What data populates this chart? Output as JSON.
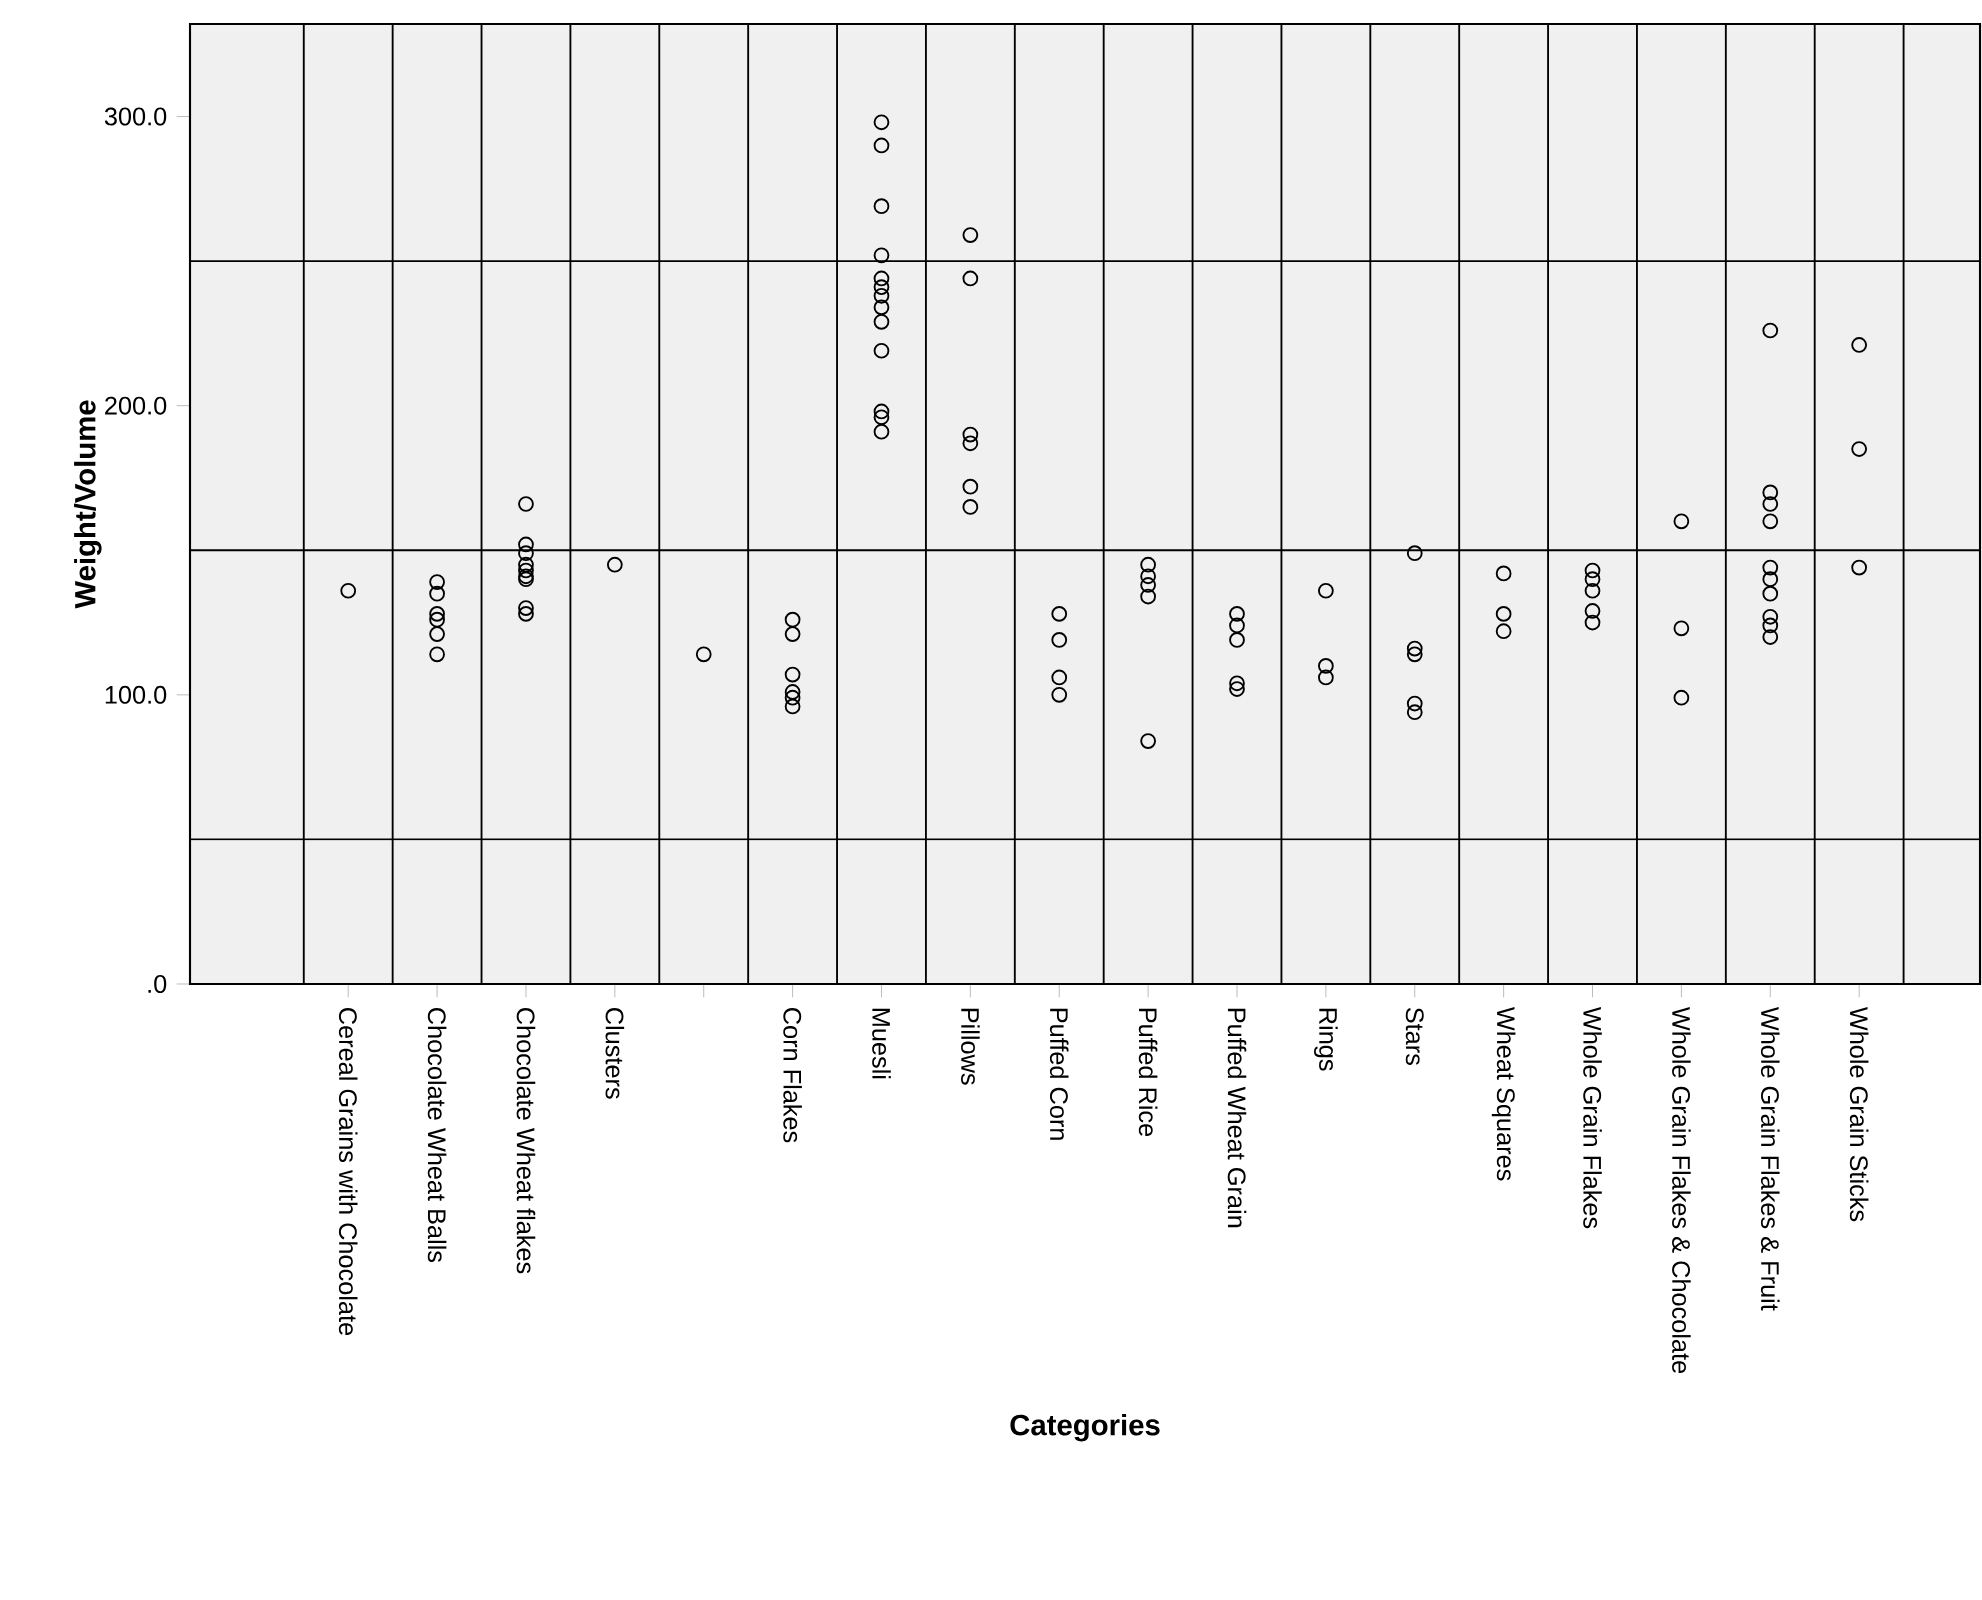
{
  "chart_data": {
    "type": "scatter",
    "xlabel": "Categories",
    "ylabel": "Weight/Volume",
    "categories": [
      "Cereal Grains with Chocolate",
      "Chocolate Wheat Balls",
      "Chocolate Wheat flakes",
      "Clusters",
      null,
      "Corn Flakes",
      "Muesli",
      "Pillows",
      "Puffed Corn",
      "Puffed Rice",
      "Puffed Wheat Grain",
      "Rings",
      "Stars",
      "Wheat Squares",
      "Whole Grain Flakes",
      "Whole Grain Flakes & Chocolate",
      "Whole Grain Flakes & Fruit",
      "Whole Grain Sticks"
    ],
    "series": [
      {
        "color": "#000000",
        "values": [
          136,
          139,
          166,
          145,
          114,
          126,
          298,
          259,
          128,
          145,
          128,
          136,
          149,
          142,
          143,
          160,
          226,
          221
        ]
      },
      {
        "color": "#000000",
        "values": [
          null,
          135,
          152,
          null,
          null,
          121,
          290,
          244,
          119,
          141,
          124,
          110,
          116,
          128,
          140,
          123,
          170,
          185
        ]
      },
      {
        "color": "#000000",
        "values": [
          null,
          128,
          149,
          null,
          null,
          107,
          269,
          190,
          106,
          138,
          119,
          106,
          114,
          122,
          136,
          99,
          166,
          144
        ]
      },
      {
        "color": "#000000",
        "values": [
          null,
          126,
          145,
          null,
          null,
          101,
          252,
          187,
          100,
          134,
          104,
          null,
          97,
          null,
          129,
          null,
          160,
          null
        ]
      },
      {
        "color": "#000000",
        "values": [
          null,
          121,
          143,
          null,
          null,
          99,
          244,
          172,
          null,
          84,
          102,
          null,
          94,
          null,
          125,
          null,
          144,
          null
        ]
      },
      {
        "color": "#000000",
        "values": [
          null,
          114,
          141,
          null,
          null,
          96,
          241,
          165,
          null,
          null,
          null,
          null,
          null,
          null,
          null,
          null,
          140,
          null
        ]
      },
      {
        "color": "#000000",
        "values": [
          null,
          null,
          140,
          null,
          null,
          null,
          238,
          null,
          null,
          null,
          null,
          null,
          null,
          null,
          null,
          null,
          135,
          null
        ]
      },
      {
        "color": "#000000",
        "values": [
          null,
          null,
          130,
          null,
          null,
          null,
          234,
          null,
          null,
          null,
          null,
          null,
          null,
          null,
          null,
          null,
          127,
          null
        ]
      },
      {
        "color": "#000000",
        "values": [
          null,
          null,
          128,
          null,
          null,
          null,
          229,
          null,
          null,
          null,
          null,
          null,
          null,
          null,
          null,
          null,
          124,
          null
        ]
      },
      {
        "color": "#000000",
        "values": [
          null,
          null,
          null,
          null,
          null,
          null,
          219,
          null,
          null,
          null,
          null,
          null,
          null,
          null,
          null,
          null,
          120,
          null
        ]
      },
      {
        "color": "#000000",
        "values": [
          null,
          null,
          null,
          null,
          null,
          null,
          198,
          null,
          null,
          null,
          null,
          null,
          null,
          null,
          null,
          null,
          null,
          null
        ]
      },
      {
        "color": "#000000",
        "values": [
          null,
          null,
          null,
          null,
          null,
          null,
          196,
          null,
          null,
          null,
          null,
          null,
          null,
          null,
          null,
          null,
          null,
          null
        ]
      },
      {
        "color": "#000000",
        "values": [
          null,
          null,
          null,
          null,
          null,
          null,
          191,
          null,
          null,
          null,
          null,
          null,
          null,
          null,
          null,
          null,
          null,
          null
        ]
      }
    ],
    "ylim": [
      0,
      332
    ],
    "yticks": [
      {
        "value": 0,
        "label": ".0"
      },
      {
        "value": 100,
        "label": "100.0"
      },
      {
        "value": 200,
        "label": "200.0"
      },
      {
        "value": 300,
        "label": "300.0"
      }
    ],
    "grid": true,
    "marker": "circle"
  }
}
